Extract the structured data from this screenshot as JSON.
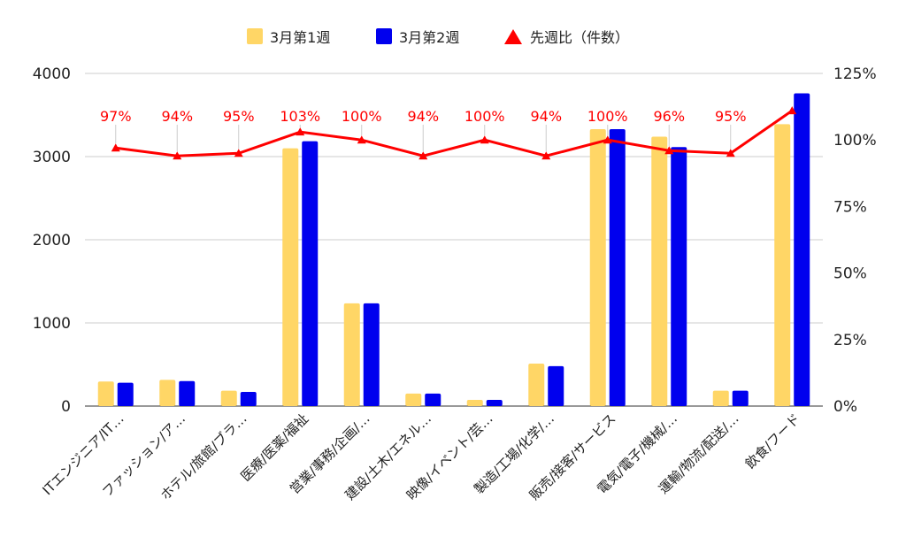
{
  "chart_data": {
    "type": "bar",
    "categories": [
      "ITエンジニア/IT…",
      "ファッション/ア…",
      "ホテル/旅館/ブラ…",
      "医療/医薬/福祉",
      "営業/事務/企画/…",
      "建設/土木/エネル…",
      "映像/イベント/芸…",
      "製造/工場/化学/…",
      "販売/接客/サービス",
      "電気/電子/機械/…",
      "運輸/物流/配送/…",
      "飲食/フード"
    ],
    "series": [
      {
        "name": "3月第1週",
        "color": "#ffd666",
        "values": [
          295,
          315,
          185,
          3100,
          1235,
          150,
          75,
          510,
          3330,
          3240,
          185,
          3390
        ]
      },
      {
        "name": "3月第2週",
        "color": "#0000ee",
        "values": [
          280,
          300,
          170,
          3185,
          1235,
          150,
          75,
          480,
          3330,
          3115,
          185,
          3760
        ]
      }
    ],
    "line_series": {
      "name": "先週比（件数）",
      "color": "#ff0000",
      "values": [
        97,
        94,
        95,
        103,
        100,
        94,
        100,
        94,
        100,
        96,
        95,
        111
      ],
      "labels": [
        "97%",
        "94%",
        "95%",
        "103%",
        "100%",
        "94%",
        "100%",
        "94%",
        "100%",
        "96%",
        "95%",
        ""
      ]
    },
    "y_left": {
      "min": 0,
      "max": 4000,
      "ticks": [
        0,
        1000,
        2000,
        3000,
        4000
      ]
    },
    "y_right": {
      "min": 0,
      "max": 125,
      "ticks": [
        "0%",
        "25%",
        "50%",
        "75%",
        "100%",
        "125%"
      ]
    },
    "legend_position": "top-center",
    "grid": true
  }
}
